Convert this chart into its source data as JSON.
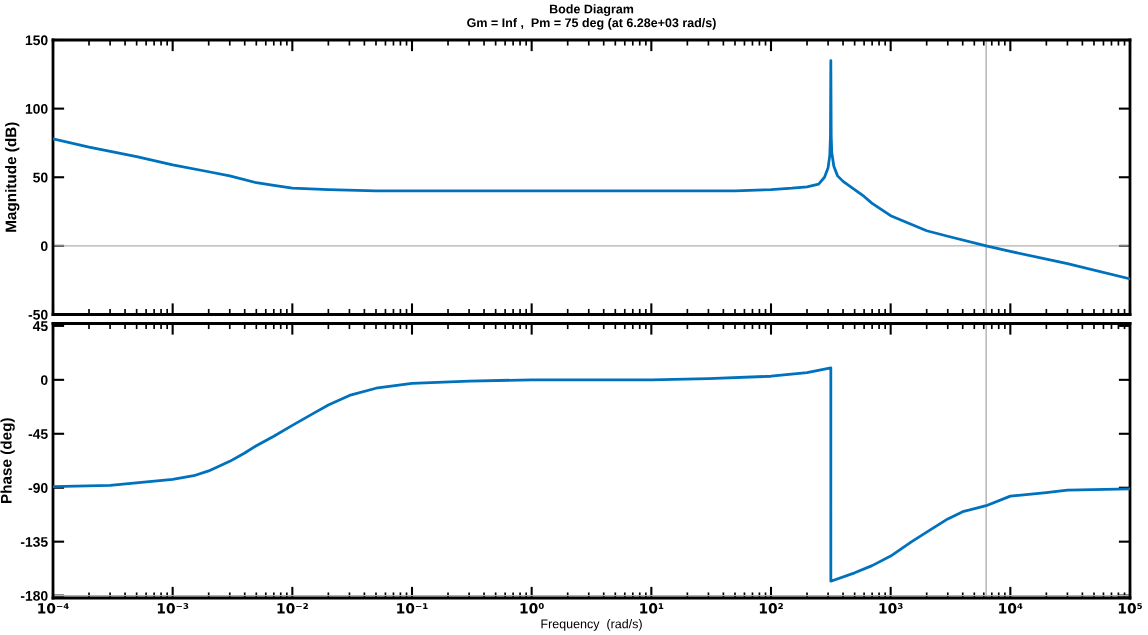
{
  "chart_data": [
    {
      "type": "line",
      "title": "Bode Diagram",
      "subtitle": "Gm = Inf ,  Pm = 75 deg (at 6.28e+03 rad/s)",
      "ylabel": "Magnitude (dB)",
      "log": "x",
      "xlim": [
        0.0001,
        100000
      ],
      "xticks": [
        {
          "value": 0.0001,
          "label": null
        },
        {
          "value": 0.001,
          "label": null
        },
        {
          "value": 0.01,
          "label": null
        },
        {
          "value": 0.1,
          "label": null
        },
        {
          "value": 1,
          "label": null
        },
        {
          "value": 10,
          "label": null
        },
        {
          "value": 100,
          "label": null
        },
        {
          "value": 1000,
          "label": null
        },
        {
          "value": 10000,
          "label": null
        },
        {
          "value": 100000,
          "label": null
        }
      ],
      "ylim": [
        -50,
        150
      ],
      "yticks": [
        -50,
        0,
        50,
        100,
        150
      ],
      "tick_labels": "y",
      "grid": false,
      "ref_lines": [
        {
          "axis": "y",
          "value": 0,
          "color": "#b0b0b0"
        },
        {
          "axis": "x",
          "value": 6280,
          "color": "#b0b0b0"
        }
      ],
      "series": [
        {
          "color": "#0072bd",
          "x": [
            0.0001,
            0.0002,
            0.0005,
            0.001,
            0.002,
            0.003,
            0.005,
            0.007,
            0.01,
            0.02,
            0.05,
            0.1,
            1,
            10,
            50,
            100,
            150,
            200,
            250,
            280,
            300,
            310,
            314,
            316.2,
            318.5,
            322,
            335,
            360,
            400,
            500,
            600,
            700,
            1000,
            2000,
            3000,
            6280,
            10000,
            30000,
            100000
          ],
          "values": [
            78,
            72,
            65,
            59,
            54,
            51,
            46,
            44,
            42,
            41,
            40,
            40,
            40,
            40,
            40,
            41,
            42,
            43,
            45,
            50,
            57,
            66,
            80,
            135,
            80,
            68,
            58,
            51,
            47,
            41,
            36,
            31,
            22,
            11,
            7,
            0,
            -4,
            -13,
            -24
          ]
        }
      ]
    },
    {
      "type": "line",
      "xlabel": "Frequency  (rad/s)",
      "ylabel": "Phase (deg)",
      "log": "x",
      "xlim": [
        0.0001,
        100000
      ],
      "xticks": [
        {
          "value": 0.0001,
          "label": "10⁻⁴"
        },
        {
          "value": 0.001,
          "label": "10⁻³"
        },
        {
          "value": 0.01,
          "label": "10⁻²"
        },
        {
          "value": 0.1,
          "label": "10⁻¹"
        },
        {
          "value": 1,
          "label": "10⁰"
        },
        {
          "value": 10,
          "label": "10¹"
        },
        {
          "value": 100,
          "label": "10²"
        },
        {
          "value": 1000,
          "label": "10³"
        },
        {
          "value": 10000,
          "label": "10⁴"
        },
        {
          "value": 100000,
          "label": "10⁵"
        }
      ],
      "ylim": [
        -182,
        47
      ],
      "yticks": [
        -180,
        -135,
        -90,
        -45,
        0,
        45
      ],
      "grid": false,
      "ref_lines": [
        {
          "axis": "y",
          "value": -180,
          "color": "#b0b0b0"
        },
        {
          "axis": "x",
          "value": 6280,
          "color": "#b0b0b0"
        }
      ],
      "series": [
        {
          "color": "#0072bd",
          "x": [
            0.0001,
            0.0003,
            0.001,
            0.0015,
            0.002,
            0.003,
            0.004,
            0.005,
            0.007,
            0.01,
            0.015,
            0.02,
            0.03,
            0.05,
            0.1,
            0.3,
            1,
            10,
            30,
            100,
            200,
            316.2,
            316.2,
            500,
            700,
            1000,
            1500,
            2000,
            3000,
            4000,
            6280,
            10000,
            20000,
            30000,
            100000
          ],
          "values": [
            -89,
            -88,
            -83,
            -80,
            -76,
            -68,
            -61,
            -55,
            -47,
            -38,
            -28,
            -21,
            -13,
            -7,
            -3,
            -1,
            0,
            0,
            1,
            3,
            6,
            10,
            -168,
            -161,
            -155,
            -147,
            -135,
            -127,
            -116,
            -110,
            -105,
            -97,
            -94,
            -92,
            -91
          ]
        }
      ]
    }
  ]
}
